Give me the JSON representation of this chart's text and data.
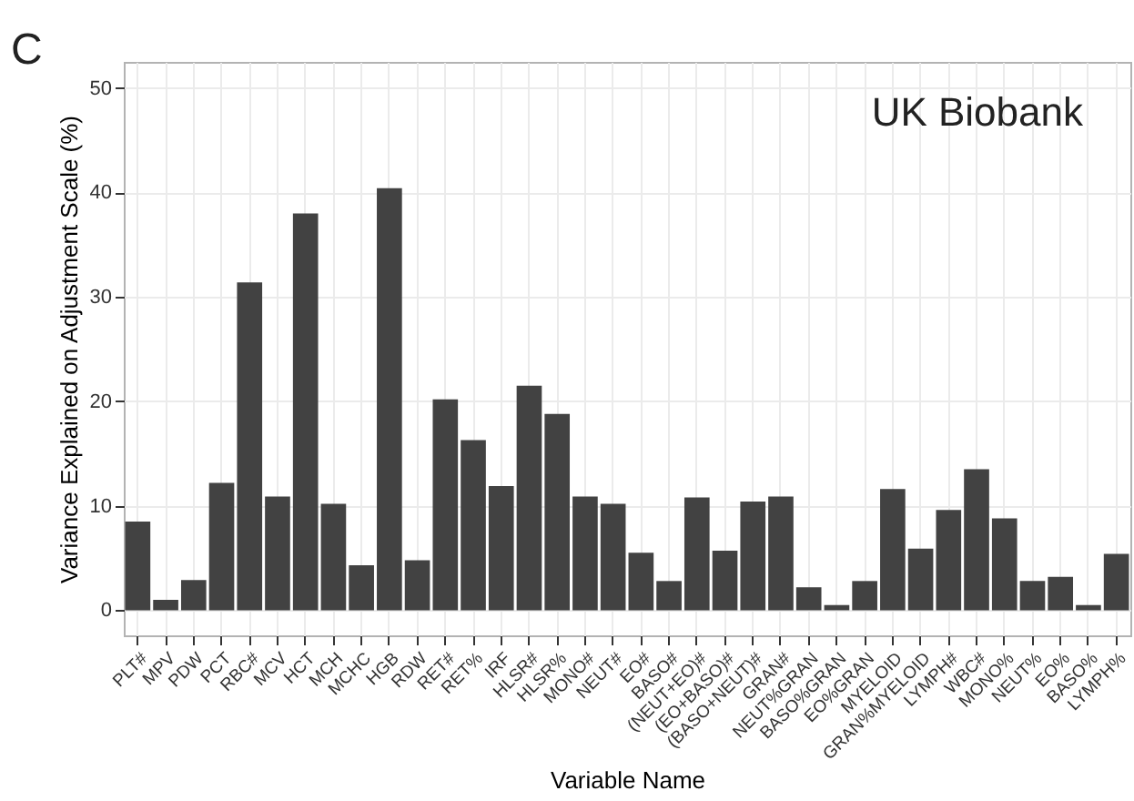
{
  "chart_data": {
    "type": "bar",
    "xlabel": "Variable Name",
    "ylabel": "Variance Explained on Adjustment Scale (%)",
    "categories": [
      "PLT#",
      "MPV",
      "PDW",
      "PCT",
      "RBC#",
      "MCV",
      "HCT",
      "MCH",
      "MCHC",
      "HGB",
      "RDW",
      "RET#",
      "RET%",
      "IRF",
      "HLSR#",
      "HLSR%",
      "MONO#",
      "NEUT#",
      "EO#",
      "BASO#",
      "(NEUT+EO)#",
      "(EO+BASO)#",
      "(BASO+NEUT)#",
      "GRAN#",
      "NEUT%GRAN",
      "BASO%GRAN",
      "EO%GRAN",
      "MYELOID",
      "GRAN%MYELOID",
      "LYMPH#",
      "WBC#",
      "MONO%",
      "NEUT%",
      "EO%",
      "BASO%",
      "LYMPH%"
    ],
    "values": [
      8.5,
      1.0,
      2.9,
      12.2,
      31.4,
      10.9,
      38.0,
      10.2,
      4.3,
      40.4,
      4.8,
      20.2,
      16.3,
      11.9,
      21.5,
      18.8,
      10.9,
      10.2,
      5.5,
      2.8,
      10.8,
      5.7,
      10.4,
      10.9,
      2.2,
      0.5,
      2.8,
      11.6,
      5.9,
      9.6,
      13.5,
      8.8,
      2.8,
      3.2,
      0.5,
      5.4
    ],
    "color": "#424242",
    "ylim": [
      -2.4,
      52.5
    ],
    "yticks": [
      0,
      10,
      20,
      30,
      40,
      50
    ],
    "grid": true,
    "annotations": [
      "C",
      "UK Biobank"
    ]
  }
}
